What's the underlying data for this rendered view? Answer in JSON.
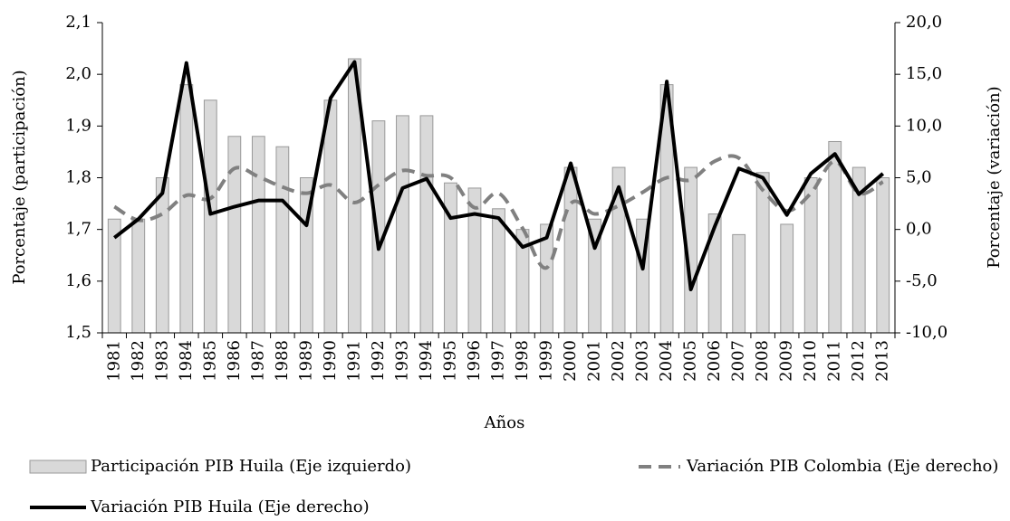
{
  "chart_data": {
    "type": "bar-line",
    "x_label": "Años",
    "y_label": "Porcentaje (participación)",
    "y2_label": "Porcentaje (variación)",
    "categories": [
      "1981",
      "1982",
      "1983",
      "1984",
      "1985",
      "1986",
      "1987",
      "1988",
      "1989",
      "1990",
      "1991",
      "1992",
      "1993",
      "1994",
      "1995",
      "1996",
      "1997",
      "1998",
      "1999",
      "2000",
      "2001",
      "2002",
      "2003",
      "2004",
      "2005",
      "2006",
      "2007",
      "2008",
      "2009",
      "2010",
      "2011",
      "2012",
      "2013"
    ],
    "series": [
      {
        "name": "Participación PIB Huila (Eje izquierdo)",
        "kind": "bar",
        "color": "#d9d9d9",
        "values": [
          1.72,
          1.72,
          1.8,
          1.98,
          1.95,
          1.88,
          1.88,
          1.86,
          1.8,
          1.95,
          2.03,
          1.91,
          1.92,
          1.92,
          1.79,
          1.78,
          1.74,
          1.7,
          1.71,
          1.82,
          1.72,
          1.82,
          1.72,
          1.98,
          1.82,
          1.73,
          1.69,
          1.81,
          1.71,
          1.8,
          1.87,
          1.82,
          1.8
        ]
      },
      {
        "name": "Variación PIB Colombia (Eje derecho)",
        "kind": "line",
        "axis": "y2",
        "color": "#808080",
        "dashed": true,
        "smooth": true,
        "values": [
          2.2,
          0.9,
          1.5,
          3.3,
          3.0,
          5.9,
          5.1,
          4.1,
          3.5,
          4.3,
          2.6,
          4.3,
          5.7,
          5.2,
          5.0,
          2.1,
          3.5,
          0.1,
          -3.7,
          2.5,
          1.5,
          2.3,
          3.6,
          5.0,
          4.8,
          6.6,
          6.9,
          3.8,
          1.8,
          3.5,
          6.6,
          3.5,
          4.6
        ]
      },
      {
        "name": "Variación PIB Huila (Eje derecho)",
        "kind": "line",
        "axis": "y2",
        "color": "#000000",
        "values": [
          -0.8,
          1.0,
          3.5,
          16.1,
          1.5,
          2.2,
          2.8,
          2.8,
          0.4,
          12.7,
          16.2,
          -1.9,
          4.0,
          4.9,
          1.1,
          1.5,
          1.1,
          -1.7,
          -0.8,
          6.4,
          -1.8,
          4.1,
          -3.8,
          14.3,
          -5.8,
          0.3,
          5.9,
          5.0,
          1.4,
          5.4,
          7.3,
          3.4,
          5.4
        ]
      }
    ],
    "ylim": [
      1.5,
      2.1
    ],
    "yticks": [
      {
        "value": 1.5,
        "label": "1,5"
      },
      {
        "value": 1.6,
        "label": "1,6"
      },
      {
        "value": 1.7,
        "label": "1,7"
      },
      {
        "value": 1.8,
        "label": "1,8"
      },
      {
        "value": 1.9,
        "label": "1,9"
      },
      {
        "value": 2.0,
        "label": "2,0"
      },
      {
        "value": 2.1,
        "label": "2,1"
      }
    ],
    "y2lim": [
      -10,
      20
    ],
    "y2ticks": [
      {
        "value": -10,
        "label": "-10,0"
      },
      {
        "value": -5,
        "label": "-5,0"
      },
      {
        "value": 0,
        "label": "0,0"
      },
      {
        "value": 5,
        "label": "5,0"
      },
      {
        "value": 10,
        "label": "10,0"
      },
      {
        "value": 15,
        "label": "15,0"
      },
      {
        "value": 20,
        "label": "20,0"
      }
    ]
  }
}
